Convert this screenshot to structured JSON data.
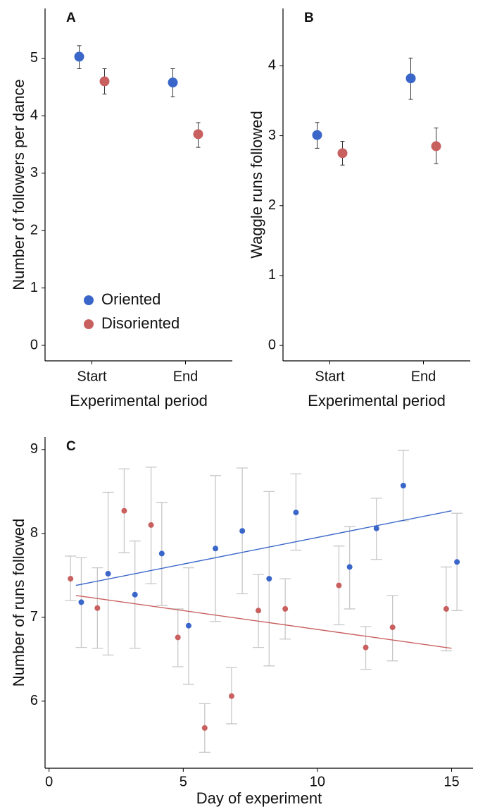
{
  "chart_data": [
    {
      "type": "pointrange",
      "panel_label": "A",
      "xlabel": "Experimental period",
      "ylabel": "Number of followers per dance",
      "categories": [
        "Start",
        "End"
      ],
      "ylim": [
        -0.27,
        5.87
      ],
      "yticks": [
        0,
        1,
        2,
        3,
        4,
        5
      ],
      "legend": "bottom-left",
      "series": [
        {
          "name": "Oriented",
          "color": "#3a66c9",
          "values": [
            5.03,
            4.58
          ],
          "lower": [
            4.82,
            4.33
          ],
          "upper": [
            5.22,
            4.82
          ]
        },
        {
          "name": "Disoriented",
          "color": "#c8605f",
          "values": [
            4.6,
            3.68
          ],
          "lower": [
            4.38,
            3.45
          ],
          "upper": [
            4.82,
            3.88
          ]
        }
      ]
    },
    {
      "type": "pointrange",
      "panel_label": "B",
      "xlabel": "Experimental period",
      "ylabel": "Waggle runs followed",
      "categories": [
        "Start",
        "End"
      ],
      "ylim": [
        -0.22,
        4.82
      ],
      "yticks": [
        0,
        1,
        2,
        3,
        4
      ],
      "series": [
        {
          "color": "#3a66c9",
          "values": [
            3.01,
            3.82
          ],
          "lower": [
            2.82,
            3.52
          ],
          "upper": [
            3.19,
            4.11
          ]
        },
        {
          "color": "#c8605f",
          "values": [
            2.75,
            2.85
          ],
          "lower": [
            2.58,
            2.6
          ],
          "upper": [
            2.92,
            3.11
          ]
        }
      ]
    },
    {
      "type": "scatter",
      "panel_label": "C",
      "xlabel": "Day of experiment",
      "ylabel": "Number of runs followed",
      "xlim": [
        -0.15,
        15.8
      ],
      "xticks": [
        0,
        5,
        10,
        15
      ],
      "ylim": [
        5.2,
        9.15
      ],
      "yticks": [
        6,
        7,
        8,
        9
      ],
      "errorbar_color": "#c8c8c8",
      "series": [
        {
          "color": "#3a66c9",
          "x": [
            1.2,
            2.2,
            3.2,
            4.2,
            5.2,
            6.2,
            7.2,
            8.2,
            9.2,
            11.2,
            12.2,
            13.2,
            15.2
          ],
          "values": [
            7.18,
            7.52,
            7.27,
            7.76,
            6.9,
            7.82,
            8.03,
            7.46,
            8.25,
            7.6,
            8.06,
            8.57,
            7.66
          ],
          "lower": [
            6.64,
            6.55,
            6.63,
            7.14,
            6.2,
            6.95,
            7.28,
            6.42,
            7.8,
            7.1,
            7.69,
            8.15,
            7.08
          ],
          "upper": [
            7.71,
            8.49,
            7.91,
            8.37,
            7.59,
            8.69,
            8.78,
            8.5,
            8.71,
            8.08,
            8.42,
            8.99,
            8.24
          ],
          "fit": {
            "x": [
              1,
              15
            ],
            "values": [
              7.38,
              8.27
            ]
          }
        },
        {
          "color": "#c8605f",
          "x": [
            0.8,
            1.8,
            2.8,
            3.8,
            4.8,
            5.8,
            6.8,
            7.8,
            8.8,
            10.8,
            11.8,
            12.8,
            14.8
          ],
          "values": [
            7.46,
            7.11,
            8.27,
            8.1,
            6.76,
            5.68,
            6.06,
            7.08,
            7.1,
            7.38,
            6.64,
            6.88,
            7.1
          ],
          "lower": [
            7.2,
            6.63,
            7.77,
            7.4,
            6.41,
            5.39,
            5.73,
            6.64,
            6.74,
            6.91,
            6.38,
            6.48,
            6.6
          ],
          "upper": [
            7.73,
            7.59,
            8.77,
            8.79,
            7.1,
            5.97,
            6.4,
            7.51,
            7.46,
            7.85,
            6.89,
            7.26,
            7.6
          ],
          "fit": {
            "x": [
              1,
              15
            ],
            "values": [
              7.26,
              6.63
            ]
          }
        }
      ]
    }
  ]
}
